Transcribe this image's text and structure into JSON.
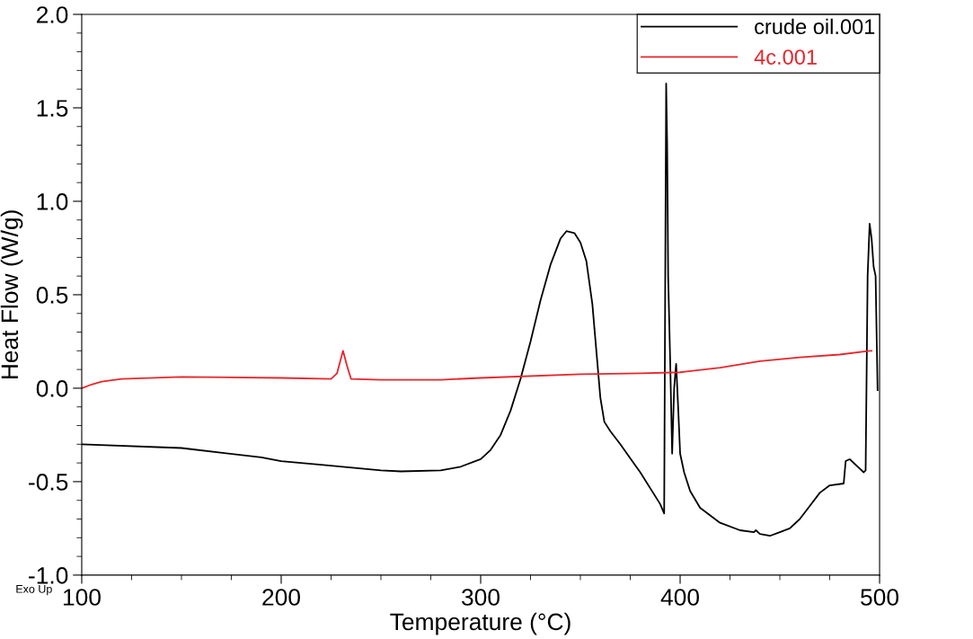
{
  "chart_data": {
    "type": "line",
    "xlabel": "Temperature (°C)",
    "ylabel": "Heat Flow (W/g)",
    "annotations": [
      "Exo Up"
    ],
    "xlim": [
      100,
      500
    ],
    "ylim": [
      -1.0,
      2.0
    ],
    "xticks": [
      100,
      {
        "value": 125,
        "label": null
      },
      {
        "value": 150,
        "label": null
      },
      {
        "value": 175,
        "label": null
      },
      200,
      {
        "value": 225,
        "label": null
      },
      {
        "value": 250,
        "label": null
      },
      {
        "value": 275,
        "label": null
      },
      300,
      {
        "value": 325,
        "label": null
      },
      {
        "value": 350,
        "label": null
      },
      {
        "value": 375,
        "label": null
      },
      400,
      {
        "value": 425,
        "label": null
      },
      {
        "value": 450,
        "label": null
      },
      {
        "value": 475,
        "label": null
      },
      500
    ],
    "yticks": [
      {
        "value": -1.0,
        "label": "-1.0"
      },
      {
        "value": -0.9,
        "label": null
      },
      {
        "value": -0.8,
        "label": null
      },
      {
        "value": -0.7,
        "label": null
      },
      {
        "value": -0.6,
        "label": null
      },
      {
        "value": -0.5,
        "label": "-0.5"
      },
      {
        "value": -0.4,
        "label": null
      },
      {
        "value": -0.3,
        "label": null
      },
      {
        "value": -0.2,
        "label": null
      },
      {
        "value": -0.1,
        "label": null
      },
      {
        "value": 0.0,
        "label": "0.0"
      },
      {
        "value": 0.1,
        "label": null
      },
      {
        "value": 0.2,
        "label": null
      },
      {
        "value": 0.3,
        "label": null
      },
      {
        "value": 0.4,
        "label": null
      },
      {
        "value": 0.5,
        "label": "0.5"
      },
      {
        "value": 0.6,
        "label": null
      },
      {
        "value": 0.7,
        "label": null
      },
      {
        "value": 0.8,
        "label": null
      },
      {
        "value": 0.9,
        "label": null
      },
      {
        "value": 1.0,
        "label": "1.0"
      },
      {
        "value": 1.1,
        "label": null
      },
      {
        "value": 1.2,
        "label": null
      },
      {
        "value": 1.3,
        "label": null
      },
      {
        "value": 1.4,
        "label": null
      },
      {
        "value": 1.5,
        "label": "1.5"
      },
      {
        "value": 1.6,
        "label": null
      },
      {
        "value": 1.7,
        "label": null
      },
      {
        "value": 1.8,
        "label": null
      },
      {
        "value": 1.9,
        "label": null
      },
      {
        "value": 2.0,
        "label": "2.0"
      }
    ],
    "grid": false,
    "legend": "top right",
    "marker": "none",
    "line_style": "solid",
    "series": [
      {
        "name": "crude oil.001",
        "color": "#000000",
        "x": [
          100,
          150,
          190,
          200,
          220,
          250,
          260,
          280,
          290,
          300,
          305,
          310,
          315,
          320,
          325,
          330,
          335,
          340,
          343,
          347,
          350,
          353,
          356,
          358,
          360,
          362,
          365,
          370,
          380,
          390,
          392,
          392.5,
          393,
          393.5,
          394,
          395,
          396,
          397,
          398,
          399,
          400,
          402,
          405,
          410,
          420,
          430,
          437,
          438,
          440,
          445,
          450,
          455,
          460,
          465,
          470,
          475,
          482,
          483,
          485,
          492,
          493,
          494,
          495,
          496,
          497,
          498,
          499
        ],
        "values": [
          -0.3,
          -0.32,
          -0.37,
          -0.39,
          -0.41,
          -0.44,
          -0.445,
          -0.44,
          -0.42,
          -0.38,
          -0.33,
          -0.25,
          -0.12,
          0.05,
          0.25,
          0.47,
          0.66,
          0.8,
          0.84,
          0.83,
          0.78,
          0.68,
          0.45,
          0.2,
          -0.05,
          -0.18,
          -0.23,
          -0.3,
          -0.45,
          -0.62,
          -0.67,
          0.5,
          1.63,
          1.3,
          0.6,
          0.15,
          -0.35,
          0.0,
          0.13,
          -0.1,
          -0.35,
          -0.45,
          -0.55,
          -0.64,
          -0.72,
          -0.76,
          -0.77,
          -0.76,
          -0.78,
          -0.79,
          -0.77,
          -0.75,
          -0.7,
          -0.63,
          -0.56,
          -0.52,
          -0.51,
          -0.39,
          -0.38,
          -0.45,
          -0.44,
          0.6,
          0.88,
          0.8,
          0.65,
          0.6,
          -0.01
        ]
      },
      {
        "name": "4c.001",
        "color": "#e8262b",
        "x": [
          100,
          105,
          110,
          120,
          150,
          200,
          225,
          228,
          231,
          233,
          235,
          250,
          280,
          300,
          350,
          380,
          400,
          420,
          440,
          460,
          480,
          495,
          496
        ],
        "values": [
          0.0,
          0.02,
          0.035,
          0.05,
          0.06,
          0.055,
          0.05,
          0.08,
          0.2,
          0.12,
          0.05,
          0.045,
          0.045,
          0.055,
          0.075,
          0.08,
          0.085,
          0.11,
          0.145,
          0.165,
          0.18,
          0.2,
          0.2
        ]
      }
    ]
  }
}
